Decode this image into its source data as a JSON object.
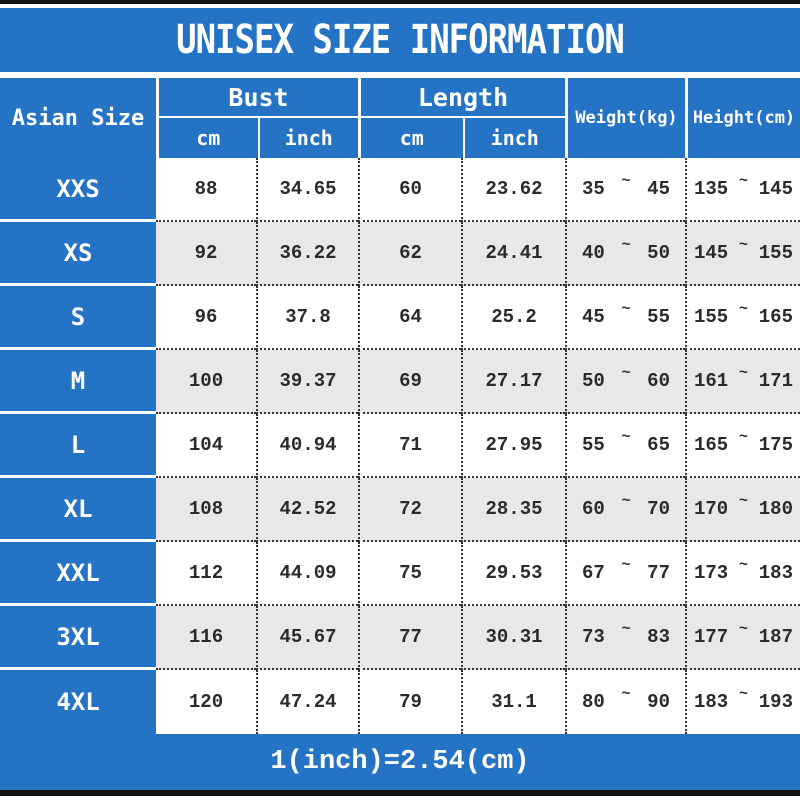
{
  "title": "UNISEX SIZE INFORMATION",
  "colors": {
    "blue": "#2573c5",
    "alt_row": "#e9e7ea",
    "bar": "#111111"
  },
  "table": {
    "size_col_header": "Asian Size",
    "groups": [
      {
        "label": "Bust",
        "sub": [
          "cm",
          "inch"
        ]
      },
      {
        "label": "Length",
        "sub": [
          "cm",
          "inch"
        ]
      }
    ],
    "weight_header": "Weight(kg)",
    "height_header": "Height(cm)",
    "tilde": "~",
    "rows": [
      {
        "size": "XXS",
        "bust_cm": "88",
        "bust_in": "34.65",
        "length_cm": "60",
        "length_in": "23.62",
        "weight": [
          "35",
          "45"
        ],
        "height": [
          "135",
          "145"
        ]
      },
      {
        "size": "XS",
        "bust_cm": "92",
        "bust_in": "36.22",
        "length_cm": "62",
        "length_in": "24.41",
        "weight": [
          "40",
          "50"
        ],
        "height": [
          "145",
          "155"
        ]
      },
      {
        "size": "S",
        "bust_cm": "96",
        "bust_in": "37.8",
        "length_cm": "64",
        "length_in": "25.2",
        "weight": [
          "45",
          "55"
        ],
        "height": [
          "155",
          "165"
        ]
      },
      {
        "size": "M",
        "bust_cm": "100",
        "bust_in": "39.37",
        "length_cm": "69",
        "length_in": "27.17",
        "weight": [
          "50",
          "60"
        ],
        "height": [
          "161",
          "171"
        ]
      },
      {
        "size": "L",
        "bust_cm": "104",
        "bust_in": "40.94",
        "length_cm": "71",
        "length_in": "27.95",
        "weight": [
          "55",
          "65"
        ],
        "height": [
          "165",
          "175"
        ]
      },
      {
        "size": "XL",
        "bust_cm": "108",
        "bust_in": "42.52",
        "length_cm": "72",
        "length_in": "28.35",
        "weight": [
          "60",
          "70"
        ],
        "height": [
          "170",
          "180"
        ]
      },
      {
        "size": "XXL",
        "bust_cm": "112",
        "bust_in": "44.09",
        "length_cm": "75",
        "length_in": "29.53",
        "weight": [
          "67",
          "77"
        ],
        "height": [
          "173",
          "183"
        ]
      },
      {
        "size": "3XL",
        "bust_cm": "116",
        "bust_in": "45.67",
        "length_cm": "77",
        "length_in": "30.31",
        "weight": [
          "73",
          "83"
        ],
        "height": [
          "177",
          "187"
        ]
      },
      {
        "size": "4XL",
        "bust_cm": "120",
        "bust_in": "47.24",
        "length_cm": "79",
        "length_in": "31.1",
        "weight": [
          "80",
          "90"
        ],
        "height": [
          "183",
          "193"
        ]
      }
    ]
  },
  "footer": {
    "note": "1(inch)=2.54(cm)"
  },
  "chart_data": {
    "type": "table",
    "title": "UNISEX SIZE INFORMATION",
    "columns": [
      "Asian Size",
      "Bust cm",
      "Bust inch",
      "Length cm",
      "Length inch",
      "Weight(kg)",
      "Height(cm)"
    ],
    "rows": [
      [
        "XXS",
        88,
        34.65,
        60,
        23.62,
        "35~45",
        "135~145"
      ],
      [
        "XS",
        92,
        36.22,
        62,
        24.41,
        "40~50",
        "145~155"
      ],
      [
        "S",
        96,
        37.8,
        64,
        25.2,
        "45~55",
        "155~165"
      ],
      [
        "M",
        100,
        39.37,
        69,
        27.17,
        "50~60",
        "161~171"
      ],
      [
        "L",
        104,
        40.94,
        71,
        27.95,
        "55~65",
        "165~175"
      ],
      [
        "XL",
        108,
        42.52,
        72,
        28.35,
        "60~70",
        "170~180"
      ],
      [
        "XXL",
        112,
        44.09,
        75,
        29.53,
        "67~77",
        "173~183"
      ],
      [
        "3XL",
        116,
        45.67,
        77,
        30.31,
        "73~83",
        "177~187"
      ],
      [
        "4XL",
        120,
        47.24,
        79,
        31.1,
        "80~90",
        "183~193"
      ]
    ],
    "note": "1(inch)=2.54(cm)"
  }
}
